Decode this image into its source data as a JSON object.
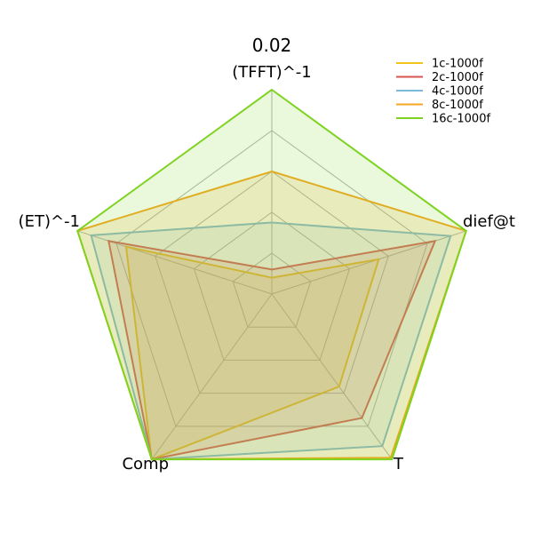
{
  "chart_data": {
    "type": "radar",
    "title": "0.02",
    "axes": [
      "(TFFT)^-1",
      "dief@t",
      "T",
      "Comp",
      "(ET)^-1"
    ],
    "rlim": [
      0,
      1
    ],
    "grid": true,
    "legend_position": "top-right",
    "series": [
      {
        "name": "1c-1000f",
        "color": "#f0c419",
        "values": [
          0.08,
          0.55,
          0.56,
          1.0,
          0.75
        ]
      },
      {
        "name": "2c-1000f",
        "color": "#d9534f",
        "values": [
          0.12,
          0.84,
          0.75,
          1.0,
          0.84
        ]
      },
      {
        "name": "4c-1000f",
        "color": "#7db9d9",
        "values": [
          0.35,
          0.92,
          0.92,
          1.0,
          0.93
        ]
      },
      {
        "name": "8c-1000f",
        "color": "#f5a623",
        "values": [
          0.6,
          1.0,
          0.99,
          1.0,
          1.0
        ]
      },
      {
        "name": "16c-1000f",
        "color": "#7ed321",
        "values": [
          1.0,
          1.0,
          1.0,
          1.0,
          1.0
        ]
      }
    ]
  }
}
